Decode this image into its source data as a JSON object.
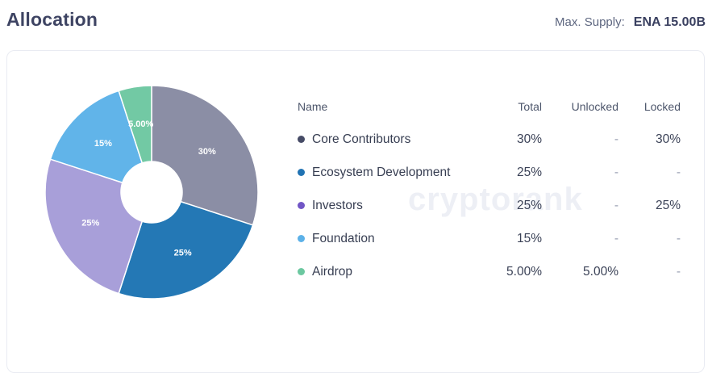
{
  "header": {
    "title": "Allocation",
    "max_supply_label": "Max. Supply:",
    "max_supply_value": "ENA 15.00B"
  },
  "watermark": "cryptorank",
  "table": {
    "columns": [
      "Name",
      "Total",
      "Unlocked",
      "Locked"
    ],
    "rows": [
      {
        "name": "Core Contributors",
        "total": "30%",
        "unlocked": "-",
        "locked": "30%",
        "dot_color": "#464b66"
      },
      {
        "name": "Ecosystem Development",
        "total": "25%",
        "unlocked": "-",
        "locked": "-",
        "dot_color": "#2173b3"
      },
      {
        "name": "Investors",
        "total": "25%",
        "unlocked": "-",
        "locked": "25%",
        "dot_color": "#7156c6"
      },
      {
        "name": "Foundation",
        "total": "15%",
        "unlocked": "-",
        "locked": "-",
        "dot_color": "#5cb1e8"
      },
      {
        "name": "Airdrop",
        "total": "5.00%",
        "unlocked": "5.00%",
        "locked": "-",
        "dot_color": "#6cc8a0"
      }
    ]
  },
  "chart_data": {
    "type": "pie",
    "donut": true,
    "title": "Allocation",
    "categories": [
      "Core Contributors",
      "Ecosystem Development",
      "Investors",
      "Foundation",
      "Airdrop"
    ],
    "values": [
      30,
      25,
      25,
      15,
      5
    ],
    "slice_labels": [
      "30%",
      "25%",
      "25%",
      "15%",
      "5.00%"
    ],
    "slice_colors": [
      "#8b8ea5",
      "#2478b5",
      "#a89fd9",
      "#61b4e9",
      "#72c9a4"
    ],
    "start_angle_deg": 0,
    "direction": "clockwise",
    "inner_radius_ratio": 0.29,
    "legend_position": "right-table"
  }
}
